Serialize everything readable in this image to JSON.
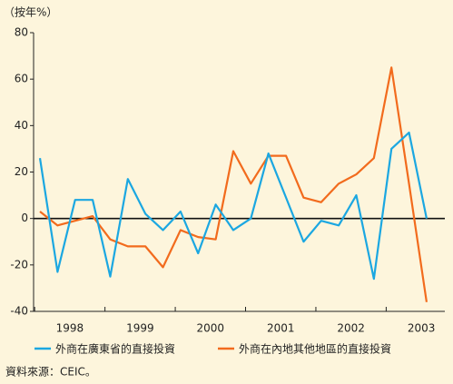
{
  "chart_data": {
    "type": "line",
    "y_label": "（按年%）",
    "source": "資料來源：CEIC。",
    "categories": [
      null,
      null,
      "1998",
      null,
      null,
      null,
      "1999",
      null,
      null,
      null,
      "2000",
      null,
      null,
      null,
      "2001",
      null,
      null,
      null,
      "2002",
      null,
      null,
      null,
      "2003"
    ],
    "series": [
      {
        "name": "外商在廣東省的直接投資",
        "color": "#1ba7e1",
        "values": [
          26,
          -23,
          8,
          8,
          -25,
          17,
          2,
          -5,
          3,
          -15,
          6,
          -5,
          0,
          28,
          9,
          -10,
          -1,
          -3,
          10,
          -26,
          30,
          37,
          0
        ]
      },
      {
        "name": "外商在內地其他地區的直接投資",
        "color": "#f26b1d",
        "values": [
          3,
          -3,
          -1,
          1,
          -9,
          -12,
          -12,
          -21,
          -5,
          -8,
          -9,
          29,
          15,
          27,
          27,
          9,
          7,
          15,
          19,
          26,
          65,
          15,
          -36
        ]
      }
    ],
    "ylim": [
      -40,
      80
    ],
    "yticks": [
      -40,
      -20,
      0,
      20,
      40,
      60,
      80
    ]
  }
}
